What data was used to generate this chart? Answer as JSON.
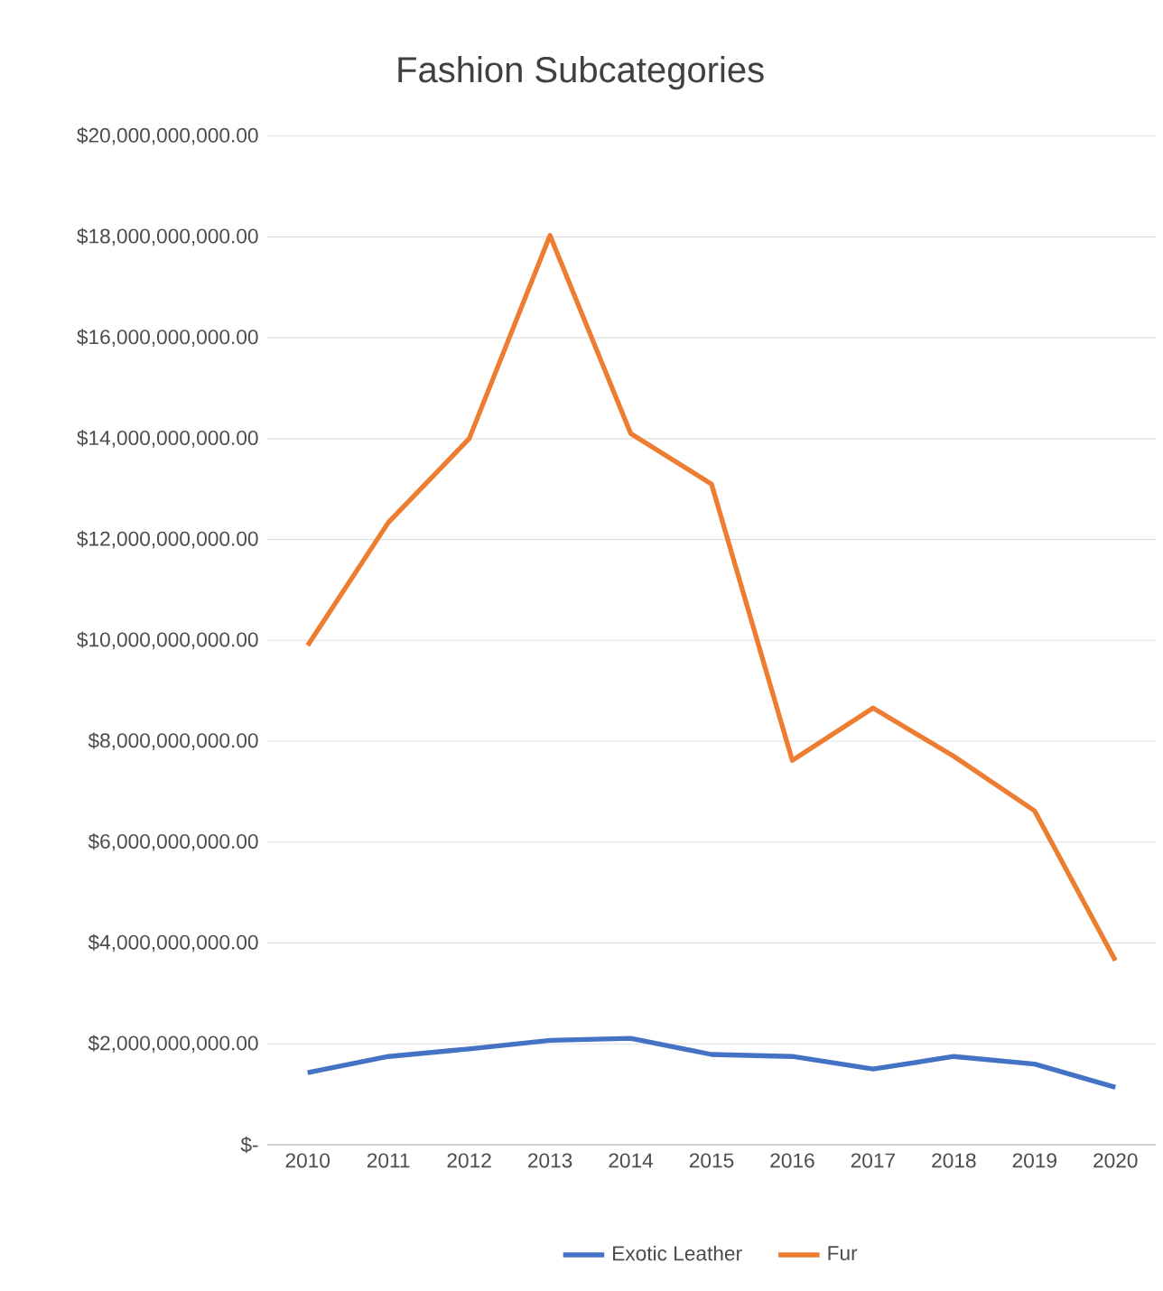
{
  "chart_data": {
    "type": "line",
    "title": "Fashion Subcategories",
    "categories": [
      "2010",
      "2011",
      "2012",
      "2013",
      "2014",
      "2015",
      "2016",
      "2017",
      "2018",
      "2019",
      "2020"
    ],
    "series": [
      {
        "name": "Exotic Leather",
        "color": "#4472c4",
        "values": [
          1430000000,
          1750000000,
          1900000000,
          2070000000,
          2110000000,
          1790000000,
          1750000000,
          1500000000,
          1750000000,
          1600000000,
          1140000000
        ]
      },
      {
        "name": "Fur",
        "color": "#ed7d31",
        "values": [
          9900000000,
          12340000000,
          14000000000,
          18030000000,
          14100000000,
          13100000000,
          7620000000,
          8660000000,
          7700000000,
          6620000000,
          3650000000
        ]
      }
    ],
    "ylim": [
      0,
      20000000000
    ],
    "yticks": [
      {
        "value": 0,
        "label": "$-"
      },
      {
        "value": 2000000000,
        "label": "$2,000,000,000.00"
      },
      {
        "value": 4000000000,
        "label": "$4,000,000,000.00"
      },
      {
        "value": 6000000000,
        "label": "$6,000,000,000.00"
      },
      {
        "value": 8000000000,
        "label": "$8,000,000,000.00"
      },
      {
        "value": 10000000000,
        "label": "$10,000,000,000.00"
      },
      {
        "value": 12000000000,
        "label": "$12,000,000,000.00"
      },
      {
        "value": 14000000000,
        "label": "$14,000,000,000.00"
      },
      {
        "value": 16000000000,
        "label": "$16,000,000,000.00"
      },
      {
        "value": 18000000000,
        "label": "$18,000,000,000.00"
      },
      {
        "value": 20000000000,
        "label": "$20,000,000,000.00"
      }
    ],
    "grid": "y",
    "legend": "bottom",
    "line_style": "solid"
  }
}
